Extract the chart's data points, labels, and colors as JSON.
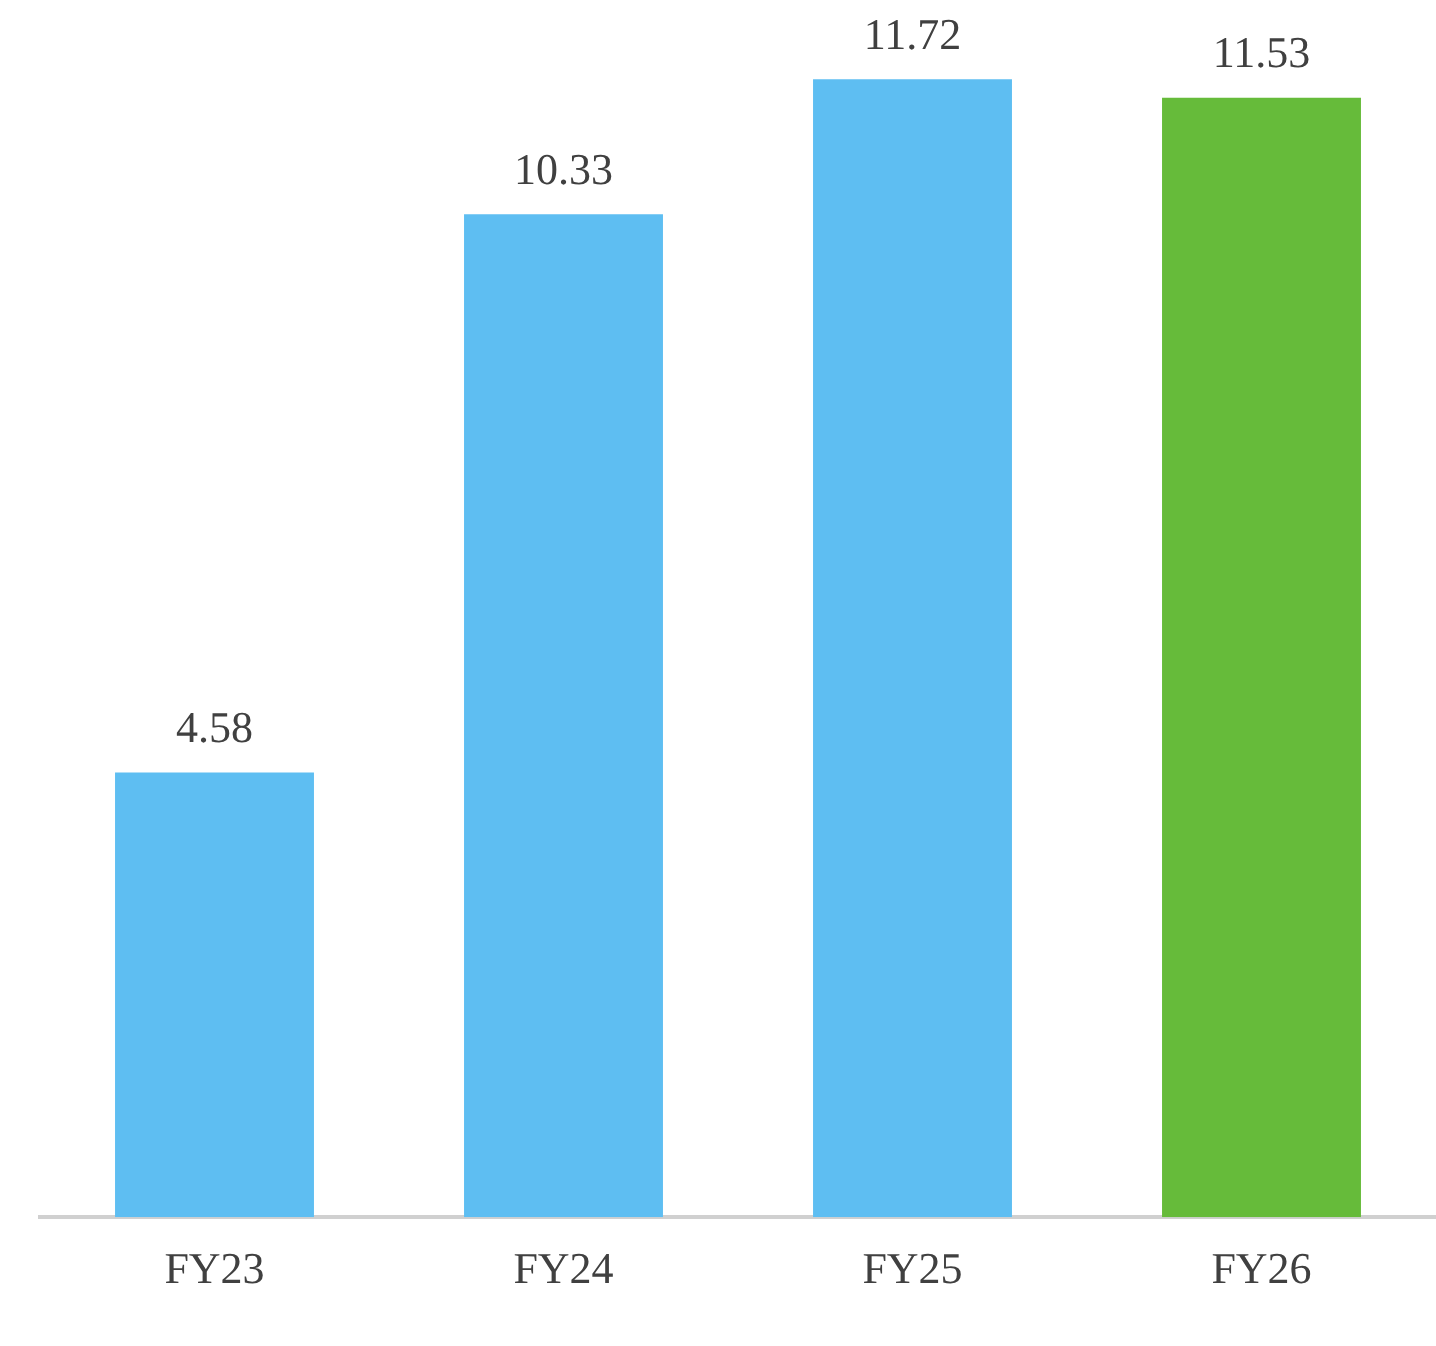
{
  "chart_data": {
    "type": "bar",
    "categories": [
      "FY23",
      "FY24",
      "FY25",
      "FY26"
    ],
    "values": [
      4.58,
      10.33,
      11.72,
      11.53
    ],
    "colors": [
      "#5ebef2",
      "#5ebef2",
      "#5ebef2",
      "#66bb3a"
    ],
    "data_labels": true,
    "grid": false,
    "legend": false
  }
}
